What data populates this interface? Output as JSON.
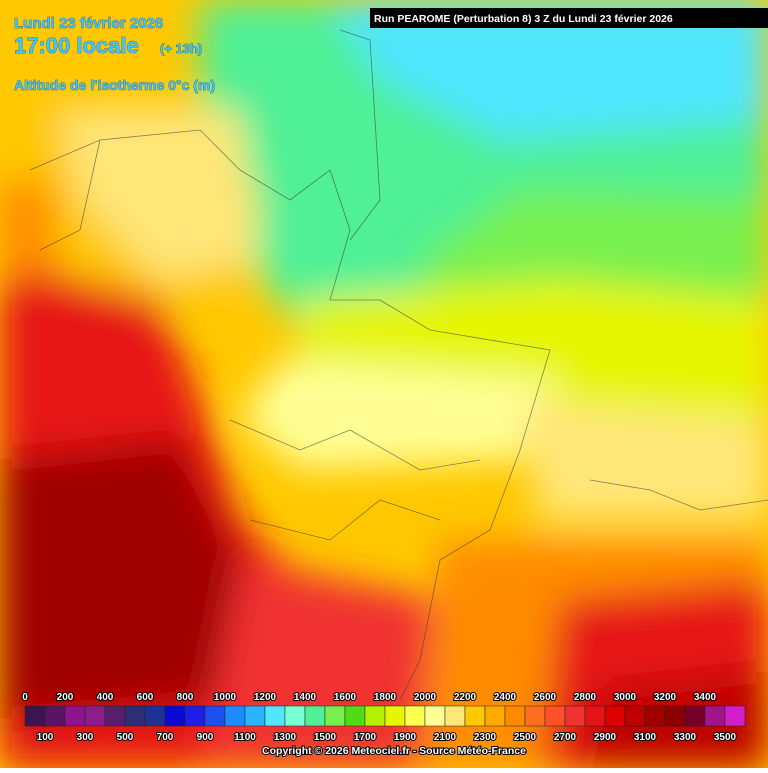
{
  "header": {
    "date": "Lundi 23 février 2026",
    "time": "17:00 locale",
    "offset": "(+ 13h)",
    "variable": "Altitude de l'isotherme 0°c (m)"
  },
  "run": "Run PEAROME (Perturbation 8) 3 Z du Lundi 23 février 2026",
  "legend": {
    "ticks": [
      0,
      100,
      200,
      300,
      400,
      500,
      600,
      700,
      800,
      900,
      1000,
      1100,
      1200,
      1300,
      1400,
      1500,
      1600,
      1700,
      1800,
      1900,
      2000,
      2100,
      2200,
      2300,
      2400,
      2500,
      2600,
      2700,
      2800,
      2900,
      3000,
      3100,
      3200,
      3300,
      3400,
      3500
    ],
    "colors": [
      "#3c1450",
      "#5a1466",
      "#8c148c",
      "#8c1e8c",
      "#5a1e6e",
      "#2d2d78",
      "#1e3296",
      "#0a0ad2",
      "#1e1ee6",
      "#1e50f0",
      "#1e8cff",
      "#28b4ff",
      "#50e6ff",
      "#78ffd2",
      "#50f096",
      "#78f050",
      "#50dc14",
      "#b4f000",
      "#e6f500",
      "#ffff50",
      "#ffff96",
      "#ffe678",
      "#ffc800",
      "#ffaa00",
      "#ff8c00",
      "#ff6e1e",
      "#ff5028",
      "#f03232",
      "#e61414",
      "#dc0000",
      "#be0000",
      "#a00000",
      "#8c0000",
      "#780028",
      "#a0148c",
      "#d21ec8"
    ]
  },
  "copyright": "Copyright © 2026 Meteociel.fr - Source Météo-France"
}
